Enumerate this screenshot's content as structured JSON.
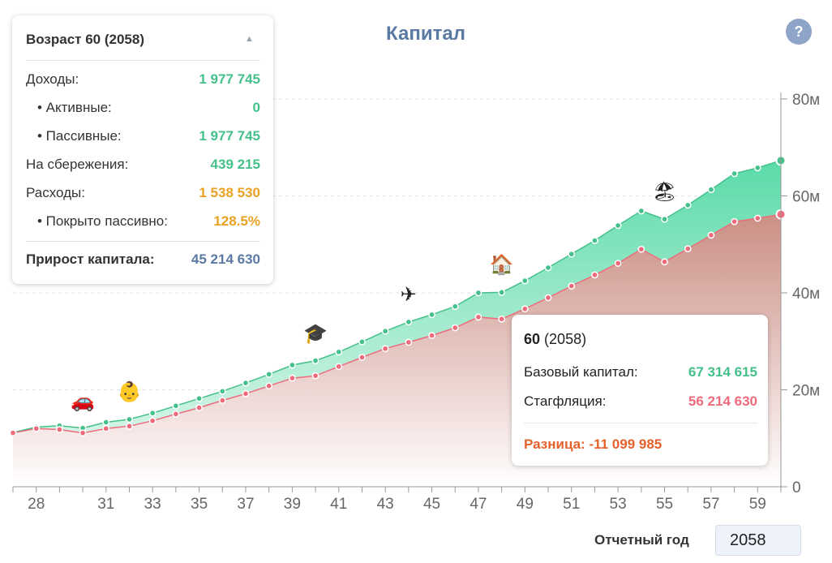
{
  "title": "Капитал",
  "help_label": "?",
  "panel": {
    "heading": "Возраст 60 (2058)",
    "rows": [
      {
        "label": "Доходы:",
        "value": "1 977 745"
      },
      {
        "label": "• Активные:",
        "value": "0"
      },
      {
        "label": "• Пассивные:",
        "value": "1 977 745"
      },
      {
        "label": "На сбережения:",
        "value": "439 215"
      },
      {
        "label": "Расходы:",
        "value": "1 538 530"
      },
      {
        "label": "• Покрыто пассивно:",
        "value": "128.5%"
      }
    ],
    "total": {
      "label": "Прирост капитала:",
      "value": "45 214 630"
    }
  },
  "tooltip": {
    "age": "60",
    "year": "(2058)",
    "base_label": "Базовый капитал:",
    "base_value": "67 314 615",
    "stag_label": "Стагфляция:",
    "stag_value": "56 214 630",
    "diff": "Разница: -11 099 985"
  },
  "footer": {
    "year_label": "Отчетный год",
    "year_value": "2058"
  },
  "colors": {
    "base": "#45c08b",
    "stagflation": "#ee6b7c",
    "title": "#5b7aa3",
    "difference": "#e5612b",
    "expenses": "#e9a224"
  },
  "events": [
    {
      "age": 30,
      "icon": "car-icon",
      "glyph": "🚗"
    },
    {
      "age": 32,
      "icon": "baby-icon",
      "glyph": "👶"
    },
    {
      "age": 40,
      "icon": "graduation-cap-icon",
      "glyph": "🎓"
    },
    {
      "age": 44,
      "icon": "airplane-icon",
      "glyph": "✈"
    },
    {
      "age": 48,
      "icon": "house-icon",
      "glyph": "🏠"
    },
    {
      "age": 55,
      "icon": "beach-umbrella-icon",
      "glyph": "🏖"
    }
  ],
  "chart_data": {
    "type": "area",
    "x_ticks": [
      28,
      31,
      33,
      35,
      37,
      39,
      41,
      43,
      45,
      47,
      49,
      51,
      53,
      55,
      57,
      59
    ],
    "y_ticks": [
      "0",
      "20м",
      "40м",
      "60м",
      "80м"
    ],
    "ylim": [
      0,
      80
    ],
    "grid": true,
    "series": [
      {
        "name": "Базовый капитал",
        "color": "#45c08b",
        "x": [
          27,
          28,
          29,
          30,
          31,
          32,
          33,
          34,
          35,
          36,
          37,
          38,
          39,
          40,
          41,
          42,
          43,
          44,
          45,
          46,
          47,
          48,
          49,
          50,
          51,
          52,
          53,
          54,
          55,
          56,
          57,
          58,
          59,
          60
        ],
        "y": [
          11.2,
          12.3,
          12.6,
          12.1,
          13.3,
          13.9,
          15.2,
          16.7,
          18.2,
          19.7,
          21.4,
          23.2,
          25.1,
          26,
          27.8,
          29.9,
          32.1,
          34,
          35.5,
          37.2,
          40,
          40.1,
          42.5,
          45.2,
          48,
          50.8,
          53.9,
          56.9,
          55.2,
          58.1,
          61.3,
          64.6,
          65.8,
          67.3
        ]
      },
      {
        "name": "Стагфляция",
        "color": "#ee6b7c",
        "x": [
          27,
          28,
          29,
          30,
          31,
          32,
          33,
          34,
          35,
          36,
          37,
          38,
          39,
          40,
          41,
          42,
          43,
          44,
          45,
          46,
          47,
          48,
          49,
          50,
          51,
          52,
          53,
          54,
          55,
          56,
          57,
          58,
          59,
          60
        ],
        "y": [
          11.1,
          12,
          11.8,
          11.1,
          12,
          12.5,
          13.6,
          15,
          16.3,
          17.8,
          19.2,
          20.8,
          22.4,
          22.9,
          24.8,
          26.7,
          28.5,
          29.8,
          31.2,
          32.8,
          35,
          34.6,
          36.7,
          39,
          41.4,
          43.7,
          46.1,
          49,
          46.4,
          49.1,
          51.9,
          54.7,
          55.4,
          56.2
        ]
      }
    ]
  }
}
